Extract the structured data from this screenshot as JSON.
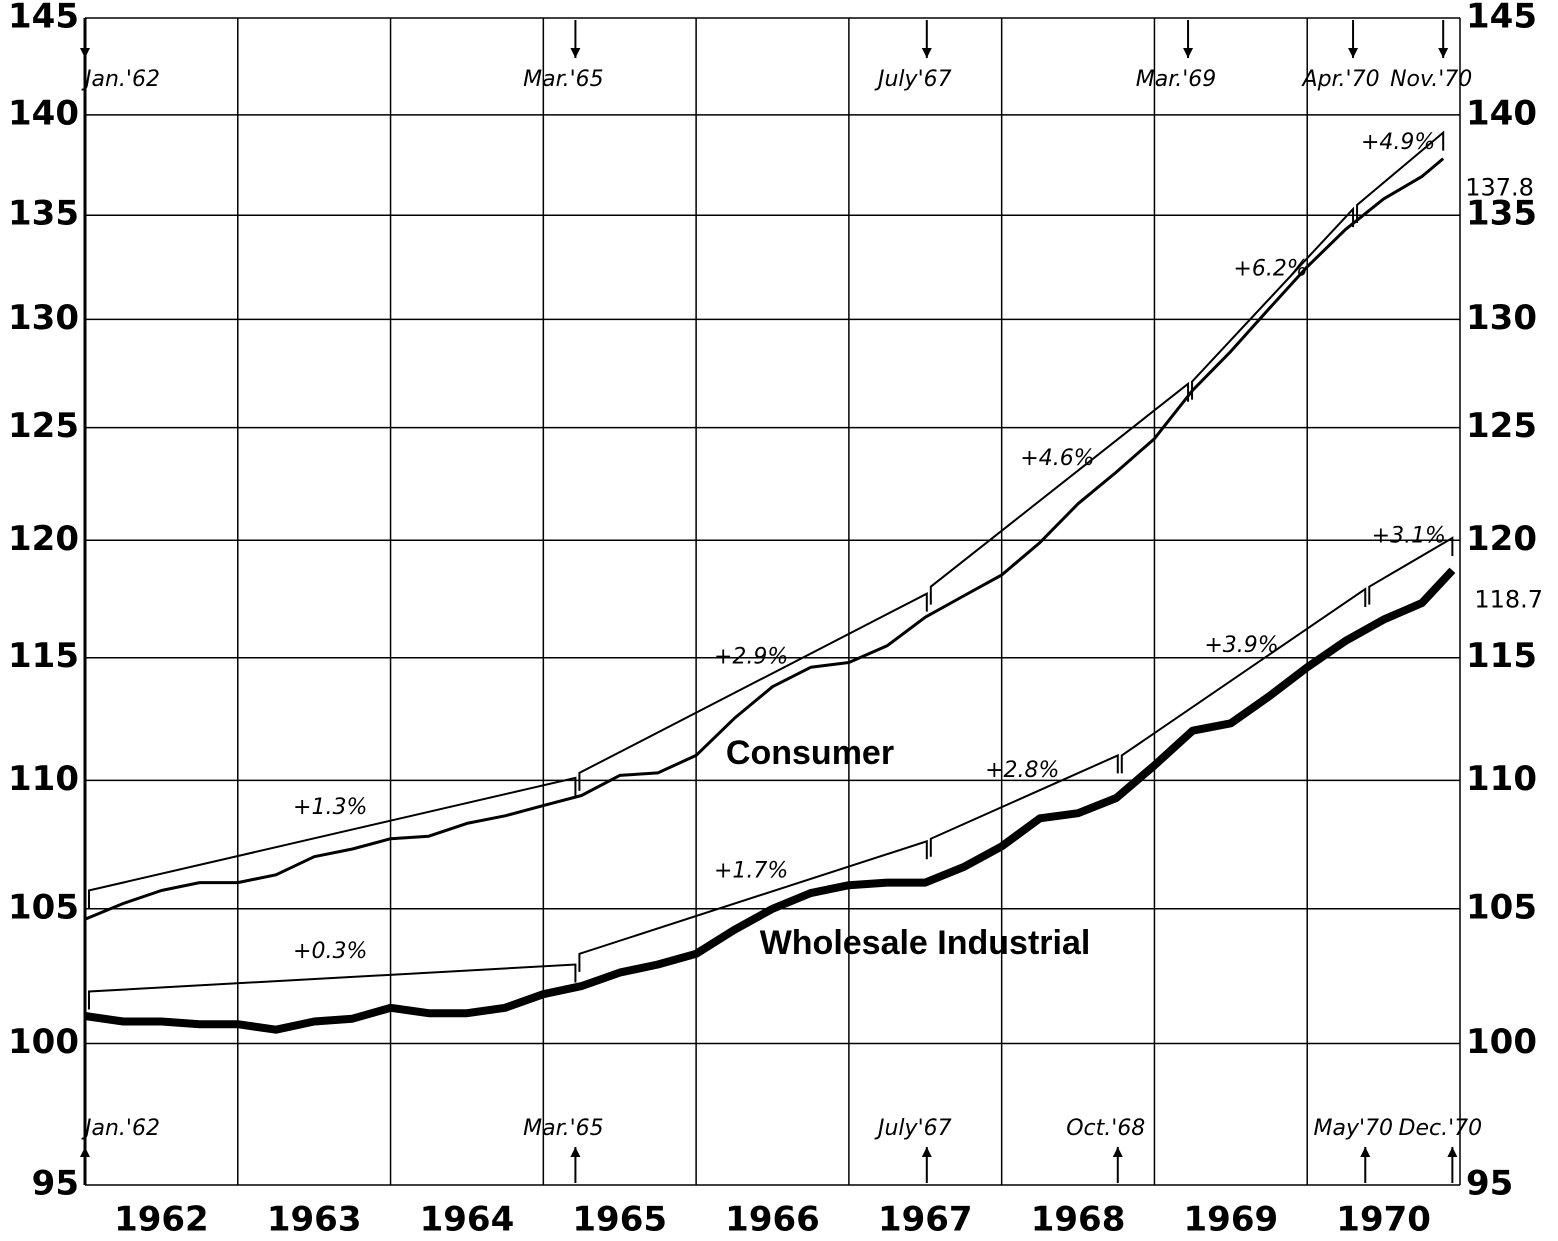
{
  "chart_data": {
    "type": "line",
    "log": true,
    "grid": true,
    "ylim": [
      95,
      145
    ],
    "yticks": [
      95,
      100,
      105,
      110,
      115,
      120,
      125,
      130,
      135,
      140,
      145
    ],
    "xlim": [
      1962,
      1971
    ],
    "categories": [
      "1962",
      "1963",
      "1964",
      "1965",
      "1966",
      "1967",
      "1968",
      "1969",
      "1970"
    ],
    "top_markers": [
      {
        "label": "Jan.'62",
        "x": 1962.0
      },
      {
        "label": "Mar.'65",
        "x": 1965.21
      },
      {
        "label": "July'67",
        "x": 1967.51
      },
      {
        "label": "Mar.'69",
        "x": 1969.22
      },
      {
        "label": "Apr.'70",
        "x": 1970.3
      },
      {
        "label": "Nov.'70",
        "x": 1970.89
      }
    ],
    "bottom_markers": [
      {
        "label": "Jan.'62",
        "x": 1962.0
      },
      {
        "label": "Mar.'65",
        "x": 1965.21
      },
      {
        "label": "July'67",
        "x": 1967.51
      },
      {
        "label": "Oct.'68",
        "x": 1968.76
      },
      {
        "label": "May'70",
        "x": 1970.38
      },
      {
        "label": "Dec.'70",
        "x": 1970.95
      }
    ],
    "series": [
      {
        "name": "Consumer",
        "color": "#000000",
        "x": [
          1962,
          1962.25,
          1962.5,
          1962.75,
          1963,
          1963.25,
          1963.5,
          1963.75,
          1964,
          1964.25,
          1964.5,
          1964.75,
          1965,
          1965.25,
          1965.5,
          1965.75,
          1966,
          1966.25,
          1966.5,
          1966.75,
          1967,
          1967.25,
          1967.5,
          1967.75,
          1968,
          1968.25,
          1968.5,
          1968.75,
          1969,
          1969.25,
          1969.5,
          1969.75,
          1970,
          1970.25,
          1970.5,
          1970.75,
          1970.89
        ],
        "values": [
          104.6,
          105.2,
          105.7,
          106.0,
          106.0,
          106.3,
          107.0,
          107.3,
          107.7,
          107.8,
          108.3,
          108.6,
          109.0,
          109.4,
          110.2,
          110.3,
          111.0,
          112.5,
          113.8,
          114.6,
          114.8,
          115.5,
          116.7,
          117.6,
          118.5,
          119.9,
          121.6,
          123.0,
          124.5,
          126.7,
          128.5,
          130.5,
          132.5,
          134.3,
          135.8,
          136.9,
          137.8
        ],
        "trend": [
          {
            "label": "+1.3%",
            "x": [
              1962.0,
              1965.21
            ],
            "values": [
              105.7,
              110.1
            ]
          },
          {
            "label": "+2.9%",
            "x": [
              1965.21,
              1967.51
            ],
            "values": [
              110.3,
              117.7
            ]
          },
          {
            "label": "+4.6%",
            "x": [
              1967.51,
              1969.22
            ],
            "values": [
              118.0,
              127.0
            ]
          },
          {
            "label": "+6.2%",
            "x": [
              1969.22,
              1970.3
            ],
            "values": [
              127.1,
              135.3
            ]
          },
          {
            "label": "+4.9%",
            "x": [
              1970.3,
              1970.89
            ],
            "values": [
              135.5,
              139.1
            ]
          }
        ]
      },
      {
        "name": "Wholesale Industrial",
        "color": "#000000",
        "x": [
          1962,
          1962.25,
          1962.5,
          1962.75,
          1963,
          1963.25,
          1963.5,
          1963.75,
          1964,
          1964.25,
          1964.5,
          1964.75,
          1965,
          1965.25,
          1965.5,
          1965.75,
          1966,
          1966.25,
          1966.5,
          1966.75,
          1967,
          1967.25,
          1967.5,
          1967.75,
          1968,
          1968.25,
          1968.5,
          1968.75,
          1969,
          1969.25,
          1969.5,
          1969.75,
          1970,
          1970.25,
          1970.5,
          1970.75,
          1970.95
        ],
        "values": [
          101.0,
          100.8,
          100.8,
          100.7,
          100.7,
          100.5,
          100.8,
          100.9,
          101.3,
          101.1,
          101.1,
          101.3,
          101.8,
          102.1,
          102.6,
          102.9,
          103.3,
          104.2,
          105.0,
          105.6,
          105.9,
          106.0,
          106.0,
          106.6,
          107.4,
          108.5,
          108.7,
          109.3,
          110.6,
          112.0,
          112.3,
          113.4,
          114.6,
          115.7,
          116.6,
          117.3,
          118.7
        ],
        "trend": [
          {
            "label": "+0.3%",
            "x": [
              1962.0,
              1965.21
            ],
            "values": [
              101.9,
              102.9
            ]
          },
          {
            "label": "+1.7%",
            "x": [
              1965.21,
              1967.51
            ],
            "values": [
              103.3,
              107.6
            ]
          },
          {
            "label": "+2.8%",
            "x": [
              1967.51,
              1968.76
            ],
            "values": [
              107.7,
              111.0
            ]
          },
          {
            "label": "+3.9%",
            "x": [
              1968.76,
              1970.38
            ],
            "values": [
              111.0,
              117.9
            ]
          },
          {
            "label": "+3.1%",
            "x": [
              1970.38,
              1970.95
            ],
            "values": [
              118.0,
              120.1
            ]
          }
        ]
      }
    ]
  }
}
